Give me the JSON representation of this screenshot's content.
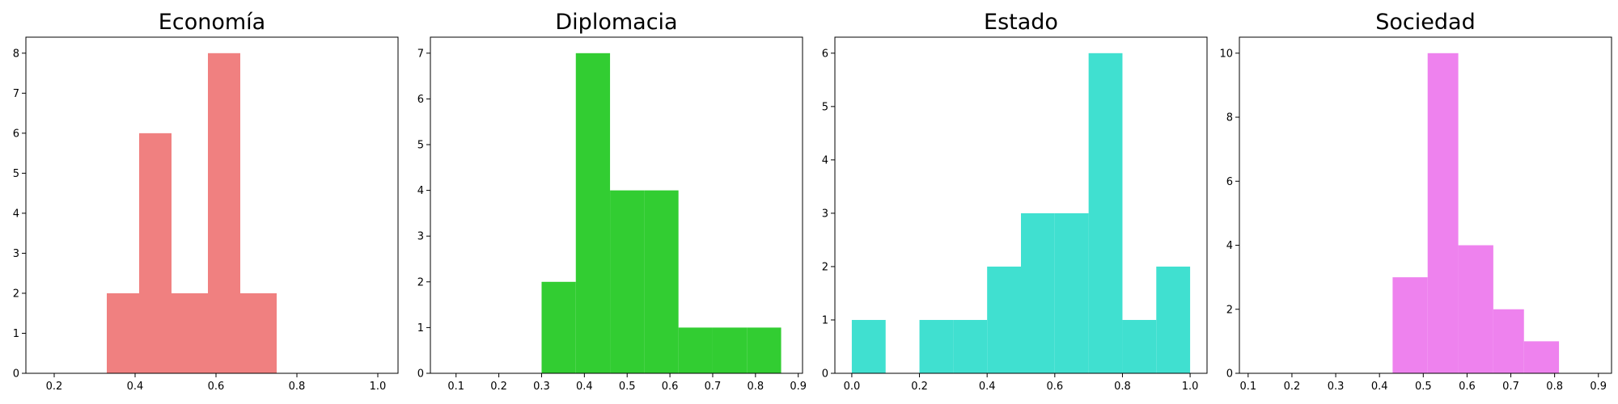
{
  "chart_data": [
    {
      "type": "bar",
      "title": "Economía",
      "color": "#f08080",
      "xlim": [
        0.13,
        1.05
      ],
      "ylim": [
        0,
        8.4
      ],
      "xticks": [
        0.2,
        0.4,
        0.6,
        0.8,
        1.0
      ],
      "xtick_labels": [
        "0.2",
        "0.4",
        "0.6",
        "0.8",
        "1.0"
      ],
      "yticks": [
        0,
        1,
        2,
        3,
        4,
        5,
        6,
        7,
        8
      ],
      "ytick_labels": [
        "0",
        "1",
        "2",
        "3",
        "4",
        "5",
        "6",
        "7",
        "8"
      ],
      "bins": [
        {
          "x0": 0.33,
          "x1": 0.41,
          "value": 2
        },
        {
          "x0": 0.41,
          "x1": 0.49,
          "value": 6
        },
        {
          "x0": 0.49,
          "x1": 0.58,
          "value": 2
        },
        {
          "x0": 0.58,
          "x1": 0.66,
          "value": 8
        },
        {
          "x0": 0.66,
          "x1": 0.75,
          "value": 2
        }
      ]
    },
    {
      "type": "bar",
      "title": "Diplomacia",
      "color": "#32cd32",
      "xlim": [
        0.04,
        0.91
      ],
      "ylim": [
        0,
        7.35
      ],
      "xticks": [
        0.1,
        0.2,
        0.3,
        0.4,
        0.5,
        0.6,
        0.7,
        0.8,
        0.9
      ],
      "xtick_labels": [
        "0.1",
        "0.2",
        "0.3",
        "0.4",
        "0.5",
        "0.6",
        "0.7",
        "0.8",
        "0.9"
      ],
      "yticks": [
        0,
        1,
        2,
        3,
        4,
        5,
        6,
        7
      ],
      "ytick_labels": [
        "0",
        "1",
        "2",
        "3",
        "4",
        "5",
        "6",
        "7"
      ],
      "bins": [
        {
          "x0": 0.3,
          "x1": 0.38,
          "value": 2
        },
        {
          "x0": 0.38,
          "x1": 0.46,
          "value": 7
        },
        {
          "x0": 0.46,
          "x1": 0.54,
          "value": 4
        },
        {
          "x0": 0.54,
          "x1": 0.62,
          "value": 4
        },
        {
          "x0": 0.62,
          "x1": 0.7,
          "value": 1
        },
        {
          "x0": 0.7,
          "x1": 0.78,
          "value": 1
        },
        {
          "x0": 0.78,
          "x1": 0.86,
          "value": 1
        }
      ]
    },
    {
      "type": "bar",
      "title": "Estado",
      "color": "#40e0d0",
      "xlim": [
        -0.05,
        1.05
      ],
      "ylim": [
        0,
        6.3
      ],
      "xticks": [
        0.0,
        0.2,
        0.4,
        0.6,
        0.8,
        1.0
      ],
      "xtick_labels": [
        "0.0",
        "0.2",
        "0.4",
        "0.6",
        "0.8",
        "1.0"
      ],
      "yticks": [
        0,
        1,
        2,
        3,
        4,
        5,
        6
      ],
      "ytick_labels": [
        "0",
        "1",
        "2",
        "3",
        "4",
        "5",
        "6"
      ],
      "bins": [
        {
          "x0": 0.0,
          "x1": 0.1,
          "value": 1
        },
        {
          "x0": 0.1,
          "x1": 0.2,
          "value": 0
        },
        {
          "x0": 0.2,
          "x1": 0.3,
          "value": 1
        },
        {
          "x0": 0.3,
          "x1": 0.4,
          "value": 1
        },
        {
          "x0": 0.4,
          "x1": 0.5,
          "value": 2
        },
        {
          "x0": 0.5,
          "x1": 0.6,
          "value": 3
        },
        {
          "x0": 0.6,
          "x1": 0.7,
          "value": 3
        },
        {
          "x0": 0.7,
          "x1": 0.8,
          "value": 6
        },
        {
          "x0": 0.8,
          "x1": 0.9,
          "value": 1
        },
        {
          "x0": 0.9,
          "x1": 1.0,
          "value": 2
        }
      ]
    },
    {
      "type": "bar",
      "title": "Sociedad",
      "color": "#ee82ee",
      "xlim": [
        0.08,
        0.93
      ],
      "ylim": [
        0,
        10.5
      ],
      "xticks": [
        0.1,
        0.2,
        0.3,
        0.4,
        0.5,
        0.6,
        0.7,
        0.8,
        0.9
      ],
      "xtick_labels": [
        "0.1",
        "0.2",
        "0.3",
        "0.4",
        "0.5",
        "0.6",
        "0.7",
        "0.8",
        "0.9"
      ],
      "yticks": [
        0,
        2,
        4,
        6,
        8,
        10
      ],
      "ytick_labels": [
        "0",
        "2",
        "4",
        "6",
        "8",
        "10"
      ],
      "bins": [
        {
          "x0": 0.43,
          "x1": 0.51,
          "value": 3
        },
        {
          "x0": 0.51,
          "x1": 0.58,
          "value": 10
        },
        {
          "x0": 0.58,
          "x1": 0.66,
          "value": 4
        },
        {
          "x0": 0.66,
          "x1": 0.73,
          "value": 2
        },
        {
          "x0": 0.73,
          "x1": 0.81,
          "value": 1
        }
      ]
    }
  ]
}
